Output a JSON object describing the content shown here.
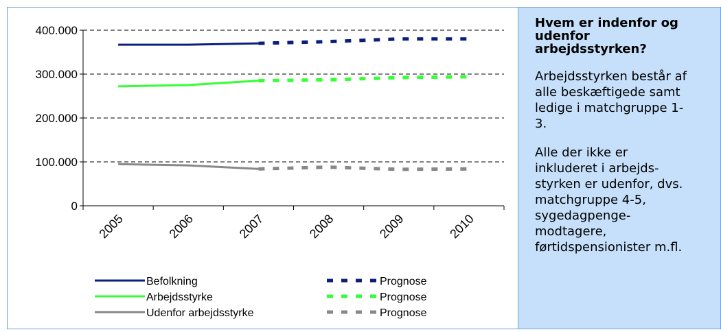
{
  "chart_data": {
    "type": "line",
    "categories": [
      "2005",
      "2006",
      "2007",
      "2008",
      "2009",
      "2010"
    ],
    "y_ticks": [
      "0",
      "100.000",
      "200.000",
      "300.000",
      "400.000"
    ],
    "ylim": [
      0,
      400000
    ],
    "grid": "dashed horizontal",
    "legend": "bottom",
    "series": [
      {
        "name": "Befolkning",
        "color": "#0b1f7a",
        "actual": [
          [
            0,
            367000
          ],
          [
            1,
            367000
          ],
          [
            2,
            370000
          ]
        ],
        "forecast_name": "Prognose",
        "forecast": [
          [
            2,
            370000
          ],
          [
            3,
            374000
          ],
          [
            4,
            380000
          ],
          [
            5,
            380000
          ]
        ]
      },
      {
        "name": "Arbejdsstyrke",
        "color": "#33ff33",
        "actual": [
          [
            0,
            272000
          ],
          [
            1,
            275000
          ],
          [
            2,
            285000
          ]
        ],
        "forecast_name": "Prognose",
        "forecast": [
          [
            2,
            285000
          ],
          [
            3,
            287000
          ],
          [
            4,
            292000
          ],
          [
            5,
            294000
          ]
        ]
      },
      {
        "name": "Udenfor arbejdsstyrke",
        "color": "#888888",
        "actual": [
          [
            0,
            95000
          ],
          [
            1,
            92000
          ],
          [
            2,
            84000
          ]
        ],
        "forecast_name": "Prognose",
        "forecast": [
          [
            2,
            84000
          ],
          [
            3,
            88000
          ],
          [
            4,
            83000
          ],
          [
            5,
            84000
          ]
        ]
      }
    ]
  },
  "sidebar": {
    "title": "Hvem er indenfor og\nudenfor\narbejdsstyrken?",
    "paragraph1": "Arbejdsstyrken består af\nalle beskæftigede samt\nledige i matchgruppe 1-\n3.",
    "paragraph2": "Alle der ikke er\ninkluderet i arbejds-\nstyrken er udenfor, dvs.\nmatchgruppe 4-5,\nsygedagpenge-\nmodtagere,\nførtidspensionister m.fl."
  }
}
